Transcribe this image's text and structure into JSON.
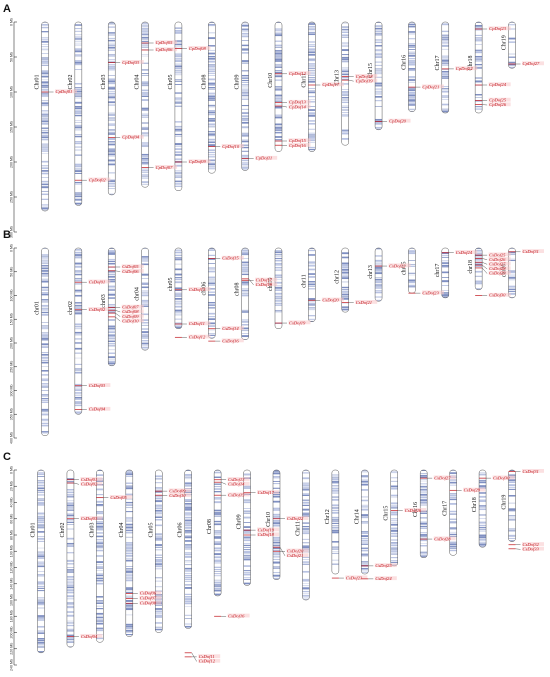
{
  "panels": [
    {
      "letter": "A",
      "axis": {
        "unit": "Mb",
        "ticks": [
          0,
          50,
          100,
          150,
          200,
          250,
          300
        ]
      },
      "chromosomes": [
        {
          "name": "Chr01",
          "length": 270
        },
        {
          "name": "Chr02",
          "length": 262
        },
        {
          "name": "Chr03",
          "length": 247
        },
        {
          "name": "Chr04",
          "length": 236
        },
        {
          "name": "Chr05",
          "length": 241
        },
        {
          "name": "Chr08",
          "length": 216
        },
        {
          "name": "Chr09",
          "length": 212
        },
        {
          "name": "Chr10",
          "length": 185
        },
        {
          "name": "Chr11",
          "length": 185
        },
        {
          "name": "Chr13",
          "length": 176
        },
        {
          "name": "Chr15",
          "length": 154
        },
        {
          "name": "Chr16",
          "length": 128
        },
        {
          "name": "Chr17",
          "length": 130
        },
        {
          "name": "Chr18",
          "length": 130
        },
        {
          "name": "Chr19",
          "length": 66
        }
      ],
      "genes": [
        {
          "name": "CpDof01",
          "chr": "Chr01",
          "pos": 100
        },
        {
          "name": "CpDof02",
          "chr": "Chr02",
          "pos": 226
        },
        {
          "name": "CpDof03",
          "chr": "Chr03",
          "pos": 58
        },
        {
          "name": "CpDof04",
          "chr": "Chr03",
          "pos": 165
        },
        {
          "name": "CpDof05",
          "chr": "Chr04",
          "pos": 30
        },
        {
          "name": "CpDof06",
          "chr": "Chr04",
          "pos": 40
        },
        {
          "name": "CpDof07",
          "chr": "Chr04",
          "pos": 208
        },
        {
          "name": "CpDof08",
          "chr": "Chr05",
          "pos": 38
        },
        {
          "name": "CpDof09",
          "chr": "Chr05",
          "pos": 200
        },
        {
          "name": "CpDof10",
          "chr": "Chr08",
          "pos": 178
        },
        {
          "name": "CpDof11",
          "chr": "Chr09",
          "pos": 195
        },
        {
          "name": "CpDof12",
          "chr": "Chr10",
          "pos": 74
        },
        {
          "name": "CpDof13",
          "chr": "Chr10",
          "pos": 115
        },
        {
          "name": "CpDof14",
          "chr": "Chr10",
          "pos": 120
        },
        {
          "name": "CpDof15",
          "chr": "Chr10",
          "pos": 170
        },
        {
          "name": "CpDof16",
          "chr": "Chr10",
          "pos": 176
        },
        {
          "name": "CpDof17",
          "chr": "Chr11",
          "pos": 90
        },
        {
          "name": "CpDof18",
          "chr": "Chr13",
          "pos": 78
        },
        {
          "name": "CpDof19",
          "chr": "Chr13",
          "pos": 83
        },
        {
          "name": "CpDof20",
          "chr": "Chr15",
          "pos": 142
        },
        {
          "name": "CpDof21",
          "chr": "Chr16",
          "pos": 93
        },
        {
          "name": "CpDof22",
          "chr": "Chr17",
          "pos": 67
        },
        {
          "name": "CpDof23",
          "chr": "Chr18",
          "pos": 10
        },
        {
          "name": "CpDof24",
          "chr": "Chr18",
          "pos": 90
        },
        {
          "name": "CpDof25",
          "chr": "Chr18",
          "pos": 112
        },
        {
          "name": "CpDof26",
          "chr": "Chr18",
          "pos": 118
        },
        {
          "name": "CpDof27",
          "chr": "Chr19",
          "pos": 60
        }
      ]
    },
    {
      "letter": "B",
      "axis": {
        "unit": "Mb",
        "ticks": [
          0,
          50,
          100,
          150,
          200,
          250,
          300,
          350,
          400
        ]
      },
      "chromosomes": [
        {
          "name": "chr01",
          "length": 395
        },
        {
          "name": "chr02",
          "length": 350
        },
        {
          "name": "chr03",
          "length": 248
        },
        {
          "name": "chr04",
          "length": 215
        },
        {
          "name": "chr05",
          "length": 170
        },
        {
          "name": "chr06",
          "length": 190
        },
        {
          "name": "chr08",
          "length": 193
        },
        {
          "name": "chr09",
          "length": 170
        },
        {
          "name": "chr11",
          "length": 155
        },
        {
          "name": "chr12",
          "length": 135
        },
        {
          "name": "chr13",
          "length": 112
        },
        {
          "name": "chr15",
          "length": 95
        },
        {
          "name": "chr17",
          "length": 105
        },
        {
          "name": "chr18",
          "length": 88
        },
        {
          "name": "chr20",
          "length": 105
        }
      ],
      "genes": [
        {
          "name": "CsDof01",
          "chr": "chr02",
          "pos": 72
        },
        {
          "name": "CsDof02",
          "chr": "chr02",
          "pos": 130
        },
        {
          "name": "CsDof03",
          "chr": "chr02",
          "pos": 290
        },
        {
          "name": "CsDof04",
          "chr": "chr02",
          "pos": 340
        },
        {
          "name": "CsDof05",
          "chr": "chr03",
          "pos": 40
        },
        {
          "name": "CsDof06",
          "chr": "chr03",
          "pos": 48
        },
        {
          "name": "CsDof07",
          "chr": "chr03",
          "pos": 125
        },
        {
          "name": "CsDof08",
          "chr": "chr03",
          "pos": 131
        },
        {
          "name": "CsDof09",
          "chr": "chr03",
          "pos": 137
        },
        {
          "name": "CsDof10",
          "chr": "chr03",
          "pos": 145
        },
        {
          "name": "CsDof11",
          "chr": "chr05",
          "pos": 160
        },
        {
          "name": "CsDof12",
          "chr": "chr05",
          "pos": 188
        },
        {
          "name": "CsDof13",
          "chr": "chr05",
          "pos": 88
        },
        {
          "name": "CsDof14",
          "chr": "chr06",
          "pos": 170
        },
        {
          "name": "CsDof15",
          "chr": "chr06",
          "pos": 22
        },
        {
          "name": "CsDof16",
          "chr": "chr06",
          "pos": 196
        },
        {
          "name": "CsDof17",
          "chr": "chr08",
          "pos": 68
        },
        {
          "name": "CsDof18",
          "chr": "chr08",
          "pos": 65
        },
        {
          "name": "CsDof19",
          "chr": "chr09",
          "pos": 158
        },
        {
          "name": "CsDof20",
          "chr": "chr11",
          "pos": 110
        },
        {
          "name": "CsDof21",
          "chr": "chr12",
          "pos": 115
        },
        {
          "name": "CsDof22",
          "chr": "chr13",
          "pos": 38
        },
        {
          "name": "CsDof23",
          "chr": "chr15",
          "pos": 95
        },
        {
          "name": "CsDof24",
          "chr": "chr17",
          "pos": 10
        },
        {
          "name": "CsDof25",
          "chr": "chr18",
          "pos": 15
        },
        {
          "name": "CsDof26",
          "chr": "chr18",
          "pos": 22
        },
        {
          "name": "CsDof27",
          "chr": "chr18",
          "pos": 30
        },
        {
          "name": "CsDof28",
          "chr": "chr18",
          "pos": 36
        },
        {
          "name": "CsDof29",
          "chr": "chr18",
          "pos": 42
        },
        {
          "name": "CsDof30",
          "chr": "chr18",
          "pos": 100
        },
        {
          "name": "CsDof31",
          "chr": "chr20",
          "pos": 8
        }
      ]
    },
    {
      "letter": "C",
      "axis": {
        "unit": "Mb",
        "ticks": [
          0,
          20,
          40,
          60,
          80,
          100,
          120,
          140,
          160,
          180,
          200,
          220,
          240
        ]
      },
      "chromosomes": [
        {
          "name": "Chr01",
          "length": 225
        },
        {
          "name": "Chr02",
          "length": 218
        },
        {
          "name": "Chr03",
          "length": 212
        },
        {
          "name": "Chr04",
          "length": 205
        },
        {
          "name": "Chr05",
          "length": 200
        },
        {
          "name": "Chr06",
          "length": 195
        },
        {
          "name": "Chr08",
          "length": 155
        },
        {
          "name": "Chr09",
          "length": 142
        },
        {
          "name": "Chr10",
          "length": 135
        },
        {
          "name": "Chr11",
          "length": 160
        },
        {
          "name": "Chr12",
          "length": 128
        },
        {
          "name": "Chr14",
          "length": 128
        },
        {
          "name": "Chr15",
          "length": 118
        },
        {
          "name": "Chr16",
          "length": 108
        },
        {
          "name": "Chr17",
          "length": 105
        },
        {
          "name": "Chr18",
          "length": 95
        },
        {
          "name": "Chr19",
          "length": 88
        }
      ],
      "genes": [
        {
          "name": "CsDof01",
          "chr": "Chr02",
          "pos": 12
        },
        {
          "name": "CsDof02",
          "chr": "Chr02",
          "pos": 16
        },
        {
          "name": "CsDof03",
          "chr": "Chr02",
          "pos": 60
        },
        {
          "name": "CsDof04",
          "chr": "Chr02",
          "pos": 205
        },
        {
          "name": "CsDof05",
          "chr": "Chr03",
          "pos": 34
        },
        {
          "name": "CsDof06",
          "chr": "Chr04",
          "pos": 152
        },
        {
          "name": "CsDof07",
          "chr": "Chr04",
          "pos": 158
        },
        {
          "name": "CsDof08",
          "chr": "Chr04",
          "pos": 164
        },
        {
          "name": "CsDof09",
          "chr": "Chr05",
          "pos": 26
        },
        {
          "name": "CsDof10",
          "chr": "Chr05",
          "pos": 31
        },
        {
          "name": "CsDof11",
          "chr": "Chr06",
          "pos": 230
        },
        {
          "name": "CsDof12",
          "chr": "Chr06",
          "pos": 225
        },
        {
          "name": "CsDof13",
          "chr": "Chr08",
          "pos": 12
        },
        {
          "name": "CsDof14",
          "chr": "Chr08",
          "pos": 15
        },
        {
          "name": "CsDof15",
          "chr": "Chr08",
          "pos": 31
        },
        {
          "name": "CsDof16",
          "chr": "Chr08",
          "pos": 180
        },
        {
          "name": "CsDof17",
          "chr": "Chr09",
          "pos": 28
        },
        {
          "name": "CsDof18",
          "chr": "Chr09",
          "pos": 80
        },
        {
          "name": "CsDof19",
          "chr": "Chr09",
          "pos": 74
        },
        {
          "name": "CsDof20",
          "chr": "Chr10",
          "pos": 100
        },
        {
          "name": "CsDof21",
          "chr": "Chr10",
          "pos": 95
        },
        {
          "name": "CsDof22",
          "chr": "Chr10",
          "pos": 60
        },
        {
          "name": "CsDof23",
          "chr": "Chr12",
          "pos": 133
        },
        {
          "name": "CsDof24",
          "chr": "Chr14",
          "pos": 134
        },
        {
          "name": "CsDof25",
          "chr": "Chr14",
          "pos": 118
        },
        {
          "name": "CsDof26",
          "chr": "Chr15",
          "pos": 50
        },
        {
          "name": "CsDof27",
          "chr": "Chr16",
          "pos": 10
        },
        {
          "name": "CsDof28",
          "chr": "Chr16",
          "pos": 85
        },
        {
          "name": "CsDof29",
          "chr": "Chr17",
          "pos": 25
        },
        {
          "name": "CsDof30",
          "chr": "Chr18",
          "pos": 10
        },
        {
          "name": "CsDof31",
          "chr": "Chr19",
          "pos": 2
        },
        {
          "name": "CsDof32",
          "chr": "Chr19",
          "pos": 92
        },
        {
          "name": "CsDof33",
          "chr": "Chr19",
          "pos": 97
        }
      ]
    }
  ],
  "colors": {
    "band": "#7f8fc2",
    "band_light": "#b8c2e2",
    "outline": "#555555",
    "gene_text": "#c0131b",
    "gene_highlight": "#f7c7c9"
  }
}
